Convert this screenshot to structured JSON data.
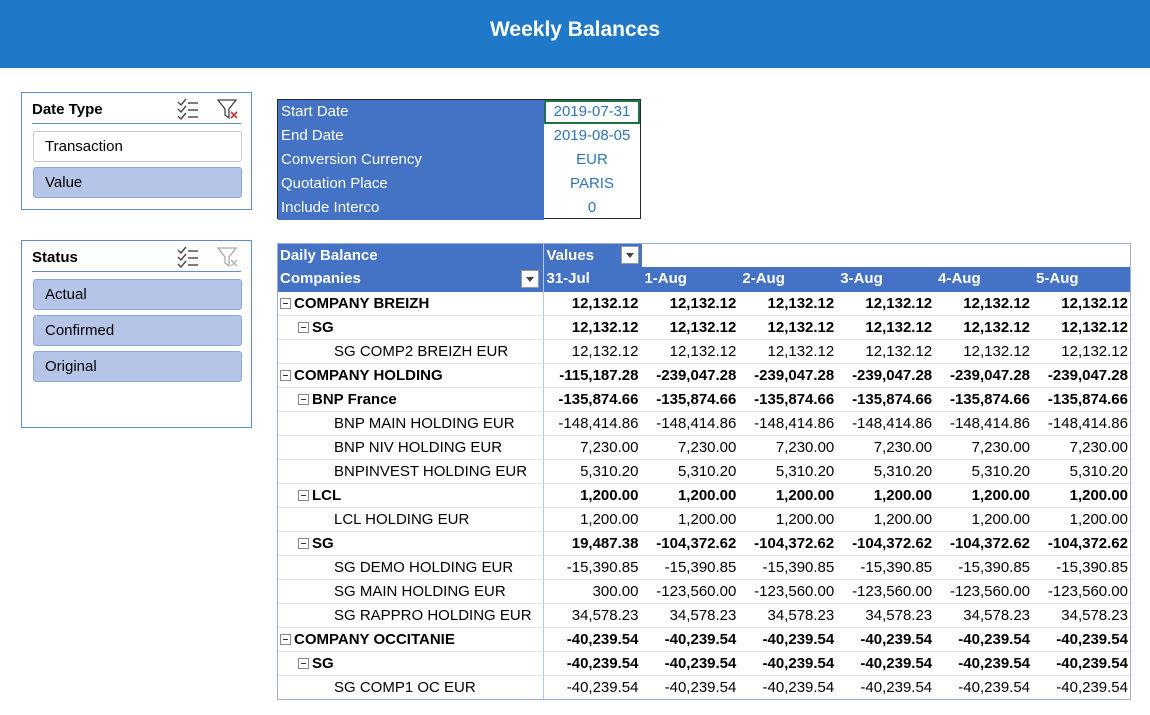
{
  "header": {
    "title": "Weekly Balances"
  },
  "slicers": {
    "date_type": {
      "title": "Date Type",
      "items": [
        {
          "label": "Transaction",
          "selected": false
        },
        {
          "label": "Value",
          "selected": true
        }
      ]
    },
    "status": {
      "title": "Status",
      "items": [
        {
          "label": "Actual",
          "selected": true
        },
        {
          "label": "Confirmed",
          "selected": true
        },
        {
          "label": "Original",
          "selected": true
        }
      ]
    }
  },
  "parameters": [
    {
      "label": "Start Date",
      "value": "2019-07-31"
    },
    {
      "label": "End Date",
      "value": "2019-08-05"
    },
    {
      "label": "Conversion Currency",
      "value": "EUR"
    },
    {
      "label": "Quotation Place",
      "value": "PARIS"
    },
    {
      "label": "Include Interco",
      "value": "0"
    }
  ],
  "pivot": {
    "title": "Daily Balance",
    "values_label": "Values",
    "row_field": "Companies",
    "columns": [
      "31-Jul",
      "1-Aug",
      "2-Aug",
      "3-Aug",
      "4-Aug",
      "5-Aug"
    ],
    "rows": [
      {
        "label": "COMPANY BREIZH",
        "level": 1,
        "bold": true,
        "values": [
          "12,132.12",
          "12,132.12",
          "12,132.12",
          "12,132.12",
          "12,132.12",
          "12,132.12"
        ]
      },
      {
        "label": "SG",
        "level": 2,
        "bold": true,
        "values": [
          "12,132.12",
          "12,132.12",
          "12,132.12",
          "12,132.12",
          "12,132.12",
          "12,132.12"
        ]
      },
      {
        "label": "SG COMP2 BREIZH EUR",
        "level": 3,
        "bold": false,
        "values": [
          "12,132.12",
          "12,132.12",
          "12,132.12",
          "12,132.12",
          "12,132.12",
          "12,132.12"
        ]
      },
      {
        "label": "COMPANY HOLDING",
        "level": 1,
        "bold": true,
        "values": [
          "-115,187.28",
          "-239,047.28",
          "-239,047.28",
          "-239,047.28",
          "-239,047.28",
          "-239,047.28"
        ]
      },
      {
        "label": "BNP France",
        "level": 2,
        "bold": true,
        "values": [
          "-135,874.66",
          "-135,874.66",
          "-135,874.66",
          "-135,874.66",
          "-135,874.66",
          "-135,874.66"
        ]
      },
      {
        "label": "BNP MAIN HOLDING EUR",
        "level": 3,
        "bold": false,
        "values": [
          "-148,414.86",
          "-148,414.86",
          "-148,414.86",
          "-148,414.86",
          "-148,414.86",
          "-148,414.86"
        ]
      },
      {
        "label": "BNP NIV HOLDING EUR",
        "level": 3,
        "bold": false,
        "values": [
          "7,230.00",
          "7,230.00",
          "7,230.00",
          "7,230.00",
          "7,230.00",
          "7,230.00"
        ]
      },
      {
        "label": "BNPINVEST HOLDING EUR",
        "level": 3,
        "bold": false,
        "values": [
          "5,310.20",
          "5,310.20",
          "5,310.20",
          "5,310.20",
          "5,310.20",
          "5,310.20"
        ]
      },
      {
        "label": "LCL",
        "level": 2,
        "bold": true,
        "values": [
          "1,200.00",
          "1,200.00",
          "1,200.00",
          "1,200.00",
          "1,200.00",
          "1,200.00"
        ]
      },
      {
        "label": "LCL HOLDING EUR",
        "level": 3,
        "bold": false,
        "values": [
          "1,200.00",
          "1,200.00",
          "1,200.00",
          "1,200.00",
          "1,200.00",
          "1,200.00"
        ]
      },
      {
        "label": "SG",
        "level": 2,
        "bold": true,
        "values": [
          "19,487.38",
          "-104,372.62",
          "-104,372.62",
          "-104,372.62",
          "-104,372.62",
          "-104,372.62"
        ]
      },
      {
        "label": "SG DEMO HOLDING EUR",
        "level": 3,
        "bold": false,
        "values": [
          "-15,390.85",
          "-15,390.85",
          "-15,390.85",
          "-15,390.85",
          "-15,390.85",
          "-15,390.85"
        ]
      },
      {
        "label": "SG MAIN HOLDING EUR",
        "level": 3,
        "bold": false,
        "values": [
          "300.00",
          "-123,560.00",
          "-123,560.00",
          "-123,560.00",
          "-123,560.00",
          "-123,560.00"
        ]
      },
      {
        "label": "SG RAPPRO HOLDING EUR",
        "level": 3,
        "bold": false,
        "values": [
          "34,578.23",
          "34,578.23",
          "34,578.23",
          "34,578.23",
          "34,578.23",
          "34,578.23"
        ]
      },
      {
        "label": "COMPANY OCCITANIE",
        "level": 1,
        "bold": true,
        "values": [
          "-40,239.54",
          "-40,239.54",
          "-40,239.54",
          "-40,239.54",
          "-40,239.54",
          "-40,239.54"
        ]
      },
      {
        "label": "SG",
        "level": 2,
        "bold": true,
        "values": [
          "-40,239.54",
          "-40,239.54",
          "-40,239.54",
          "-40,239.54",
          "-40,239.54",
          "-40,239.54"
        ]
      },
      {
        "label": "SG COMP1 OC EUR",
        "level": 3,
        "bold": false,
        "values": [
          "-40,239.54",
          "-40,239.54",
          "-40,239.54",
          "-40,239.54",
          "-40,239.54",
          "-40,239.54"
        ]
      }
    ]
  }
}
